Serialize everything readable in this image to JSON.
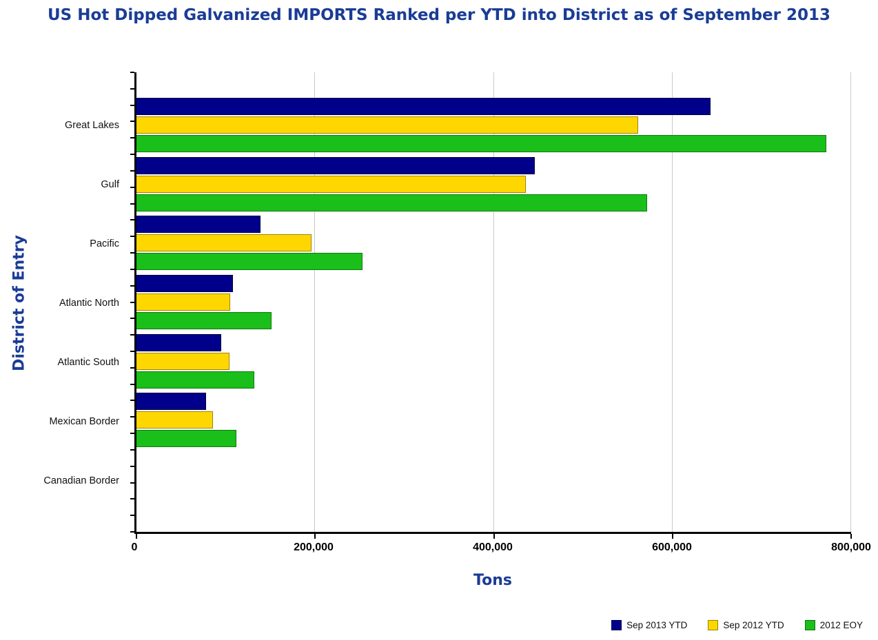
{
  "title": "US Hot Dipped Galvanized IMPORTS Ranked per YTD into District as of September 2013",
  "colors": {
    "title_navy": "#1A3C96",
    "series_navy": "#00008B",
    "series_yellow": "#FFD700",
    "series_green": "#1ABF1A"
  },
  "chart_data": {
    "type": "bar",
    "orientation": "horizontal",
    "title": "US Hot Dipped Galvanized IMPORTS Ranked per YTD into District as of September 2013",
    "xlabel": "Tons",
    "ylabel": "District of Entry",
    "xlim": [
      0,
      800000
    ],
    "grid": true,
    "legend_position": "bottom-right",
    "categories": [
      "Great Lakes",
      "Gulf",
      "Pacific",
      "Atlantic North",
      "Atlantic South",
      "Mexican Border",
      "Canadian Border"
    ],
    "x_ticks": [
      {
        "value": 0,
        "label": "0"
      },
      {
        "value": 200000,
        "label": "200,000"
      },
      {
        "value": 400000,
        "label": "400,000"
      },
      {
        "value": 600000,
        "label": "600,000"
      },
      {
        "value": 800000,
        "label": "800,000"
      }
    ],
    "series": [
      {
        "name": "Sep 2013 YTD",
        "color": "#00008B",
        "border": "#000040",
        "values": [
          643000,
          446000,
          139000,
          108000,
          95000,
          78000,
          0
        ]
      },
      {
        "name": "Sep 2012 YTD",
        "color": "#FFD700",
        "border": "#A08200",
        "values": [
          562000,
          436000,
          196000,
          105000,
          104000,
          86000,
          0
        ]
      },
      {
        "name": "2012 EOY",
        "color": "#1ABF1A",
        "border": "#0E7A0E",
        "values": [
          772000,
          572000,
          253000,
          151000,
          132000,
          112000,
          0
        ]
      }
    ]
  }
}
